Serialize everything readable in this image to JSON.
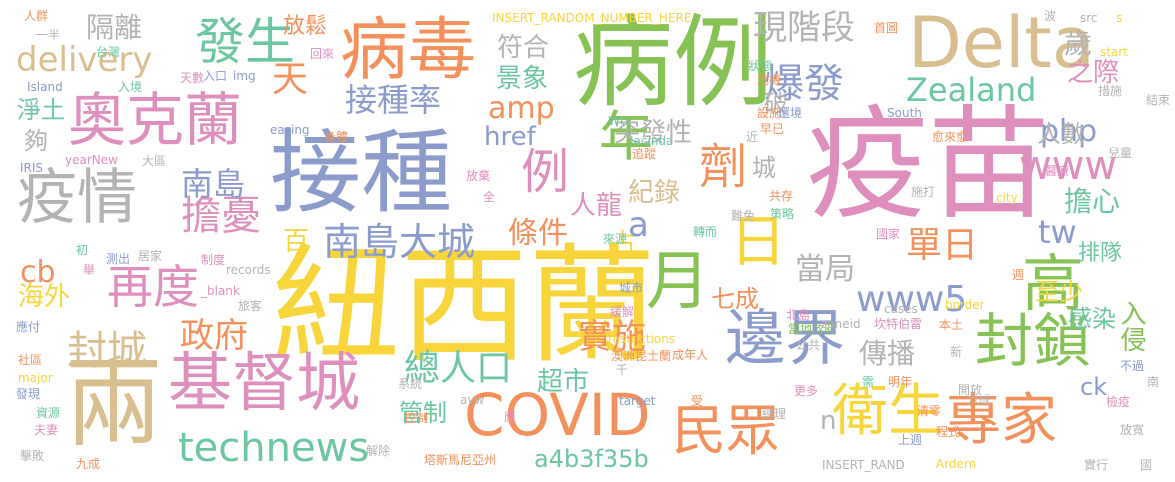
{
  "palette": {
    "green": "#86c254",
    "yellow": "#f7d53b",
    "orange": "#f3905b",
    "blue": "#8b9bcb",
    "pink": "#df8fbd",
    "gray": "#b3b3b3",
    "tan": "#d9bf8f",
    "teal": "#6cc6a1"
  },
  "words": [
    {
      "text": "紐西蘭",
      "color": "yellow"
    },
    {
      "text": "疫苗",
      "color": "pink"
    },
    {
      "text": "接種",
      "color": "blue"
    },
    {
      "text": "病例",
      "color": "green"
    },
    {
      "text": "病毒",
      "color": "orange"
    },
    {
      "text": "基督城",
      "color": "pink"
    },
    {
      "text": "兩",
      "color": "tan"
    },
    {
      "text": "Delta",
      "color": "tan"
    },
    {
      "text": "疫情",
      "color": "gray"
    },
    {
      "text": "奧克蘭",
      "color": "pink"
    },
    {
      "text": "COVID",
      "color": "orange"
    },
    {
      "text": "邊界",
      "color": "blue"
    },
    {
      "text": "衛生",
      "color": "yellow"
    },
    {
      "text": "專家",
      "color": "orange"
    },
    {
      "text": "封鎖",
      "color": "green"
    },
    {
      "text": "高",
      "color": "green"
    },
    {
      "text": "月",
      "color": "green"
    },
    {
      "text": "日",
      "color": "yellow"
    },
    {
      "text": "民眾",
      "color": "orange"
    },
    {
      "text": "technews",
      "color": "teal"
    },
    {
      "text": "南島大城",
      "color": "blue"
    },
    {
      "text": "再度",
      "color": "pink"
    },
    {
      "text": "發生",
      "color": "teal"
    },
    {
      "text": "年",
      "color": "green"
    },
    {
      "text": "例",
      "color": "pink"
    },
    {
      "text": "劑",
      "color": "orange"
    },
    {
      "text": "爆發",
      "color": "blue"
    },
    {
      "text": "www5",
      "color": "blue"
    },
    {
      "text": "www",
      "color": "pink"
    },
    {
      "text": "delivery",
      "color": "tan"
    },
    {
      "text": "擔憂",
      "color": "pink"
    },
    {
      "text": "封城",
      "color": "tan"
    },
    {
      "text": "總人口",
      "color": "teal"
    },
    {
      "text": "Zealand",
      "color": "teal"
    },
    {
      "text": "南島",
      "color": "blue"
    },
    {
      "text": "政府",
      "color": "orange"
    },
    {
      "text": "單日",
      "color": "orange"
    },
    {
      "text": "現階段",
      "color": "gray"
    },
    {
      "text": "隔離",
      "color": "gray"
    },
    {
      "text": "天",
      "color": "orange"
    },
    {
      "text": "接種率",
      "color": "blue"
    },
    {
      "text": "php",
      "color": "blue"
    },
    {
      "text": "amp",
      "color": "orange"
    },
    {
      "text": "條件",
      "color": "orange"
    },
    {
      "text": "當局",
      "color": "gray"
    },
    {
      "text": "tw",
      "color": "blue"
    },
    {
      "text": "擔心",
      "color": "teal"
    },
    {
      "text": "實施",
      "color": "orange"
    },
    {
      "text": "傳播",
      "color": "gray"
    },
    {
      "text": "a4b3f35b",
      "color": "teal"
    },
    {
      "text": "cb",
      "color": "orange"
    },
    {
      "text": "海外",
      "color": "yellow"
    },
    {
      "text": "放鬆",
      "color": "orange"
    },
    {
      "text": "符合",
      "color": "gray"
    },
    {
      "text": "景象",
      "color": "teal"
    },
    {
      "text": "歲",
      "color": "gray"
    },
    {
      "text": "之際",
      "color": "pink"
    },
    {
      "text": "突發性",
      "color": "gray"
    },
    {
      "text": "紀錄",
      "color": "tan"
    },
    {
      "text": "人龍",
      "color": "pink"
    },
    {
      "text": "七成",
      "color": "orange"
    },
    {
      "text": "至少",
      "color": "yellow"
    },
    {
      "text": "感染",
      "color": "teal"
    },
    {
      "text": "入侵",
      "color": "green"
    },
    {
      "text": "超市",
      "color": "teal"
    },
    {
      "text": "管制",
      "color": "teal"
    },
    {
      "text": "排隊",
      "color": "teal"
    },
    {
      "text": "人數",
      "color": "gray"
    },
    {
      "text": "淨土",
      "color": "teal"
    },
    {
      "text": "夠",
      "color": "gray"
    },
    {
      "text": "href",
      "color": "blue"
    },
    {
      "text": "城",
      "color": "gray"
    },
    {
      "text": "破",
      "color": "gray"
    },
    {
      "text": "占",
      "color": "yellow"
    },
    {
      "text": "a",
      "color": "blue"
    },
    {
      "text": "百",
      "color": "yellow"
    },
    {
      "text": "ck",
      "color": "blue"
    },
    {
      "text": "n",
      "color": "gray"
    },
    {
      "text": "人群",
      "color": "orange"
    },
    {
      "text": "INSERT_RANDOM_NUMBER_HERE",
      "color": "yellow"
    },
    {
      "text": "一半",
      "color": "gray"
    },
    {
      "text": "台灣",
      "color": "teal"
    },
    {
      "text": "Island",
      "color": "blue"
    },
    {
      "text": "入境",
      "color": "teal"
    },
    {
      "text": "天數",
      "color": "pink"
    },
    {
      "text": "入口",
      "color": "blue"
    },
    {
      "text": "img",
      "color": "blue"
    },
    {
      "text": "回來",
      "color": "pink"
    },
    {
      "text": "easing",
      "color": "blue"
    },
    {
      "text": "身體",
      "color": "orange"
    },
    {
      "text": "IRIS",
      "color": "blue"
    },
    {
      "text": "yearNew",
      "color": "pink"
    },
    {
      "text": "大區",
      "color": "gray"
    },
    {
      "text": "放棄",
      "color": "pink"
    },
    {
      "text": "全",
      "color": "pink"
    },
    {
      "text": "追蹤",
      "color": "orange"
    },
    {
      "text": "Jacinda",
      "color": "teal"
    },
    {
      "text": "WU",
      "color": "teal"
    },
    {
      "text": "初",
      "color": "teal"
    },
    {
      "text": "測出",
      "color": "blue"
    },
    {
      "text": "居家",
      "color": "gray"
    },
    {
      "text": "制度",
      "color": "pink"
    },
    {
      "text": "records",
      "color": "gray"
    },
    {
      "text": "_blank",
      "color": "pink"
    },
    {
      "text": "旅客",
      "color": "gray"
    },
    {
      "text": "舉",
      "color": "pink"
    },
    {
      "text": "應付",
      "color": "blue"
    },
    {
      "text": "社區",
      "color": "orange"
    },
    {
      "text": "major",
      "color": "yellow"
    },
    {
      "text": "發現",
      "color": "blue"
    },
    {
      "text": "資源",
      "color": "teal"
    },
    {
      "text": "夫妻",
      "color": "pink"
    },
    {
      "text": "擊敗",
      "color": "gray"
    },
    {
      "text": "九成",
      "color": "orange"
    },
    {
      "text": "系統",
      "color": "gray"
    },
    {
      "text": "解除",
      "color": "gray"
    },
    {
      "text": "塔斯馬尼亞州",
      "color": "orange"
    },
    {
      "text": "控制",
      "color": "orange"
    },
    {
      "text": "avw",
      "color": "gray"
    },
    {
      "text": "應",
      "color": "pink"
    },
    {
      "text": "target",
      "color": "blue"
    },
    {
      "text": "受",
      "color": "orange"
    },
    {
      "text": "總理",
      "color": "gray"
    },
    {
      "text": "更多",
      "color": "pink"
    },
    {
      "text": "INSERT_RAND",
      "color": "gray"
    },
    {
      "text": "Ardern",
      "color": "yellow"
    },
    {
      "text": "實行",
      "color": "gray"
    },
    {
      "text": "國",
      "color": "gray"
    },
    {
      "text": "restrictions",
      "color": "yellow"
    },
    {
      "text": "澳洲昆士蘭",
      "color": "orange"
    },
    {
      "text": "成年人",
      "color": "orange"
    },
    {
      "text": "千",
      "color": "gray"
    },
    {
      "text": "坎特伯雷",
      "color": "pink"
    },
    {
      "text": "本土",
      "color": "orange"
    },
    {
      "text": "公共",
      "color": "gray"
    },
    {
      "text": "緩解",
      "color": "pink"
    },
    {
      "text": "北島",
      "color": "pink"
    },
    {
      "text": "當地政府",
      "color": "green"
    },
    {
      "text": "cases",
      "color": "gray"
    },
    {
      "text": "border",
      "color": "yellow"
    },
    {
      "text": "城市",
      "color": "blue"
    },
    {
      "text": "來源",
      "color": "teal"
    },
    {
      "text": "國家",
      "color": "pink"
    },
    {
      "text": "轉而",
      "color": "teal"
    },
    {
      "text": "難免",
      "color": "gray"
    },
    {
      "text": "策略",
      "color": "teal"
    },
    {
      "text": "共存",
      "color": "orange"
    },
    {
      "text": "施打",
      "color": "gray"
    },
    {
      "text": "city",
      "color": "yellow"
    },
    {
      "text": "start",
      "color": "yellow"
    },
    {
      "text": "South",
      "color": "blue"
    },
    {
      "text": "兒童",
      "color": "gray"
    },
    {
      "text": "醫療",
      "color": "pink"
    },
    {
      "text": "愈來愈",
      "color": "orange"
    },
    {
      "text": "早已",
      "color": "orange"
    },
    {
      "text": "近",
      "color": "gray"
    },
    {
      "text": "還境",
      "color": "blue"
    },
    {
      "text": "設施",
      "color": "orange"
    },
    {
      "text": "危機",
      "color": "orange"
    },
    {
      "text": "狀態",
      "color": "teal"
    },
    {
      "text": "首圖",
      "color": "orange"
    },
    {
      "text": "波",
      "color": "gray"
    },
    {
      "text": "src",
      "color": "gray"
    },
    {
      "text": "s",
      "color": "yellow"
    },
    {
      "text": "措施",
      "color": "gray"
    },
    {
      "text": "結束",
      "color": "gray"
    },
    {
      "text": "週",
      "color": "orange"
    },
    {
      "text": "zoneid",
      "color": "gray"
    },
    {
      "text": "需",
      "color": "teal"
    },
    {
      "text": "明年",
      "color": "orange"
    },
    {
      "text": "新",
      "color": "gray"
    },
    {
      "text": "不過",
      "color": "blue"
    },
    {
      "text": "南",
      "color": "gray"
    },
    {
      "text": "開放",
      "color": "gray"
    },
    {
      "text": "六成",
      "color": "gray"
    },
    {
      "text": "清零",
      "color": "orange"
    },
    {
      "text": "檢疫",
      "color": "pink"
    },
    {
      "text": "程式",
      "color": "orange"
    },
    {
      "text": "上週",
      "color": "blue"
    },
    {
      "text": "放寬",
      "color": "gray"
    }
  ]
}
